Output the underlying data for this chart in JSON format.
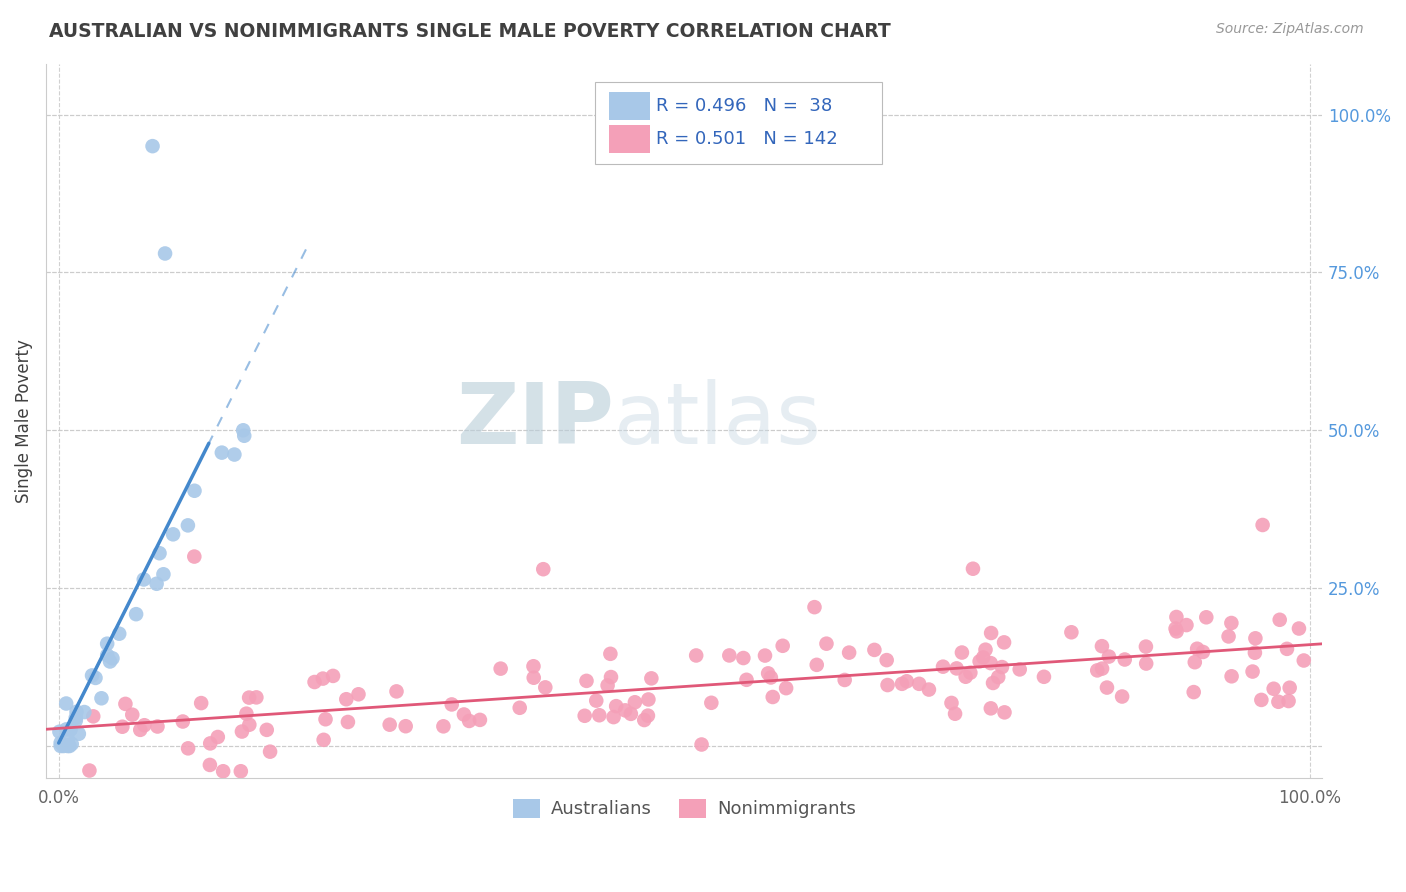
{
  "title": "AUSTRALIAN VS NONIMMIGRANTS SINGLE MALE POVERTY CORRELATION CHART",
  "source": "Source: ZipAtlas.com",
  "ylabel": "Single Male Poverty",
  "blue_R": 0.496,
  "blue_N": 38,
  "pink_R": 0.501,
  "pink_N": 142,
  "blue_color": "#A8C8E8",
  "blue_line_color": "#4488CC",
  "pink_color": "#F4A0B8",
  "pink_line_color": "#E05878",
  "background_color": "#FFFFFF",
  "grid_color": "#CCCCCC",
  "title_color": "#404040",
  "right_tick_color": "#5599DD",
  "legend_label_1": "Australians",
  "legend_label_2": "Nonimmigrants",
  "ytick_vals": [
    0.0,
    0.25,
    0.5,
    0.75,
    1.0
  ],
  "ytick_labels_right": [
    "",
    "25.0%",
    "50.0%",
    "75.0%",
    "100.0%"
  ],
  "xlim": [
    -0.01,
    1.01
  ],
  "ylim": [
    -0.05,
    1.08
  ]
}
